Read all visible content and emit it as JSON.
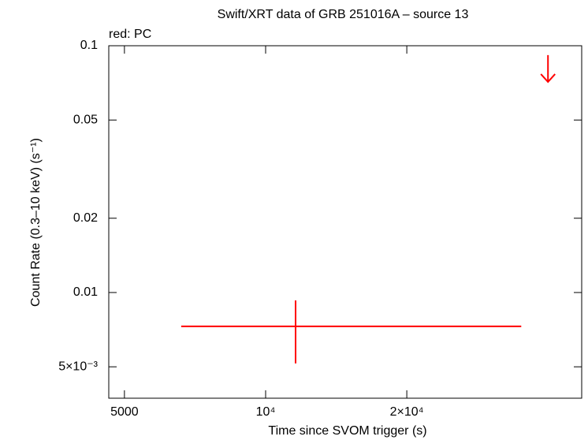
{
  "chart_data": {
    "type": "scatter",
    "title": "Swift/XRT data of GRB 251016A – source 13",
    "annotation": "red: PC",
    "x_label": "Time since SVOM trigger (s)",
    "y_label": "Count Rate (0.3–10 keV) (s⁻¹)",
    "xscale": "log",
    "yscale": "log",
    "xlim": [
      4630,
      47200
    ],
    "ylim": [
      0.00373,
      0.1
    ],
    "xticks": [
      5000,
      {
        "value": 10000,
        "label": "10⁴"
      },
      {
        "value": 20000,
        "label": "2×10⁴"
      }
    ],
    "yticks": [
      0.1,
      0.05,
      0.02,
      0.01,
      {
        "value": 0.005,
        "label": "5×10⁻³"
      }
    ],
    "color": "#ff0000",
    "x": [
      11585
    ],
    "x_lower": [
      6607
    ],
    "x_upper": [
      35080
    ],
    "values": [
      0.00729
    ],
    "y_lower": [
      0.00516
    ],
    "y_upper": [
      0.00929
    ],
    "upper_limits": {
      "x": [
        40000
      ],
      "values": [
        0.0916
      ]
    }
  }
}
